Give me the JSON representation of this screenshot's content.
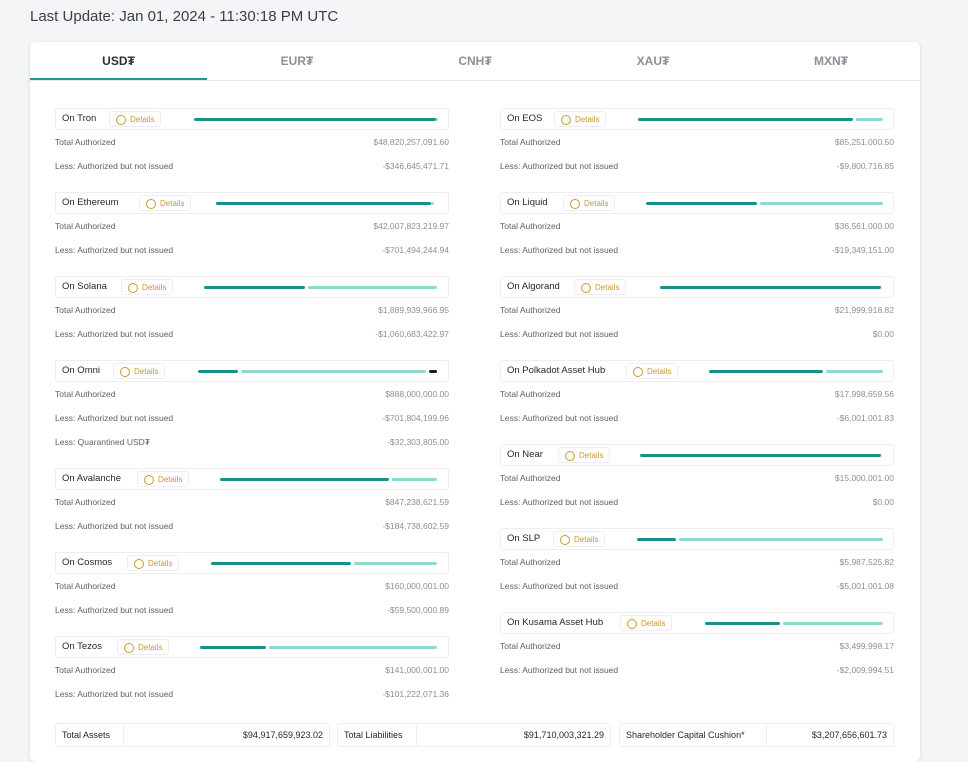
{
  "header": {
    "last_update": "Last Update: Jan 01, 2024 - 11:30:18 PM UTC"
  },
  "tabs": [
    "USD₮",
    "EUR₮",
    "CNH₮",
    "XAU₮",
    "MXN₮"
  ],
  "chains": {
    "left": [
      {
        "name": "On Tron",
        "details": "Details",
        "rows": [
          [
            "Total Authorized",
            "$48,820,257,091.60"
          ],
          [
            "Less: Authorized but not issued",
            "-$346,645,471.71"
          ]
        ]
      },
      {
        "name": "On Ethereum",
        "details": "Details",
        "rows": [
          [
            "Total Authorized",
            "$42,007,823,219.97"
          ],
          [
            "Less: Authorized but not issued",
            "-$701,494,244.94"
          ]
        ]
      },
      {
        "name": "On Solana",
        "details": "Details",
        "rows": [
          [
            "Total Authorized",
            "$1,889,939,966.95"
          ],
          [
            "Less: Authorized but not issued",
            "-$1,060,683,422.97"
          ]
        ]
      },
      {
        "name": "On Omni",
        "details": "Details",
        "rows": [
          [
            "Total Authorized",
            "$888,000,000.00"
          ],
          [
            "Less: Authorized but not issued",
            "-$701,804,199.96"
          ],
          [
            "Less: Quarantined USD₮",
            "-$32,303,805.00"
          ]
        ]
      },
      {
        "name": "On Avalanche",
        "details": "Details",
        "rows": [
          [
            "Total Authorized",
            "$847,238,621.59"
          ],
          [
            "Less: Authorized but not issued",
            "-$184,738,602.59"
          ]
        ]
      },
      {
        "name": "On Cosmos",
        "details": "Details",
        "rows": [
          [
            "Total Authorized",
            "$160,000,001.00"
          ],
          [
            "Less: Authorized but not issued",
            "-$59,500,000.89"
          ]
        ]
      },
      {
        "name": "On Tezos",
        "details": "Details",
        "rows": [
          [
            "Total Authorized",
            "$141,000,001.00"
          ],
          [
            "Less: Authorized but not issued",
            "-$101,222,071.36"
          ]
        ]
      }
    ],
    "right": [
      {
        "name": "On EOS",
        "details": "Details",
        "rows": [
          [
            "Total Authorized",
            "$85,251,000.50"
          ],
          [
            "Less: Authorized but not issued",
            "-$9,800,716.85"
          ]
        ]
      },
      {
        "name": "On Liquid",
        "details": "Details",
        "rows": [
          [
            "Total Authorized",
            "$36,561,000.00"
          ],
          [
            "Less: Authorized but not issued",
            "-$19,349,151.00"
          ]
        ]
      },
      {
        "name": "On Algorand",
        "details": "Details",
        "rows": [
          [
            "Total Authorized",
            "$21,999,918.82"
          ],
          [
            "Less: Authorized but not issued",
            "$0.00"
          ]
        ]
      },
      {
        "name": "On Polkadot Asset Hub",
        "details": "Details",
        "rows": [
          [
            "Total Authorized",
            "$17,998,659.56"
          ],
          [
            "Less: Authorized but not issued",
            "-$6,001,001.83"
          ]
        ]
      },
      {
        "name": "On Near",
        "details": "Details",
        "rows": [
          [
            "Total Authorized",
            "$15,000,001.00"
          ],
          [
            "Less: Authorized but not issued",
            "$0.00"
          ]
        ]
      },
      {
        "name": "On SLP",
        "details": "Details",
        "rows": [
          [
            "Total Authorized",
            "$5,987,525.82"
          ],
          [
            "Less: Authorized but not issued",
            "-$5,001,001.08"
          ]
        ]
      },
      {
        "name": "On Kusama Asset Hub",
        "details": "Details",
        "rows": [
          [
            "Total Authorized",
            "$3,499,998.17"
          ],
          [
            "Less: Authorized but not issued",
            "-$2,009,994.51"
          ]
        ]
      }
    ]
  },
  "totals": [
    [
      "Total Assets",
      "$94,917,659,923.02"
    ],
    [
      "Total Liabilities",
      "$91,710,003,321.29"
    ],
    [
      "Shareholder Capital Cushion*",
      "$3,207,656,601.73"
    ]
  ]
}
